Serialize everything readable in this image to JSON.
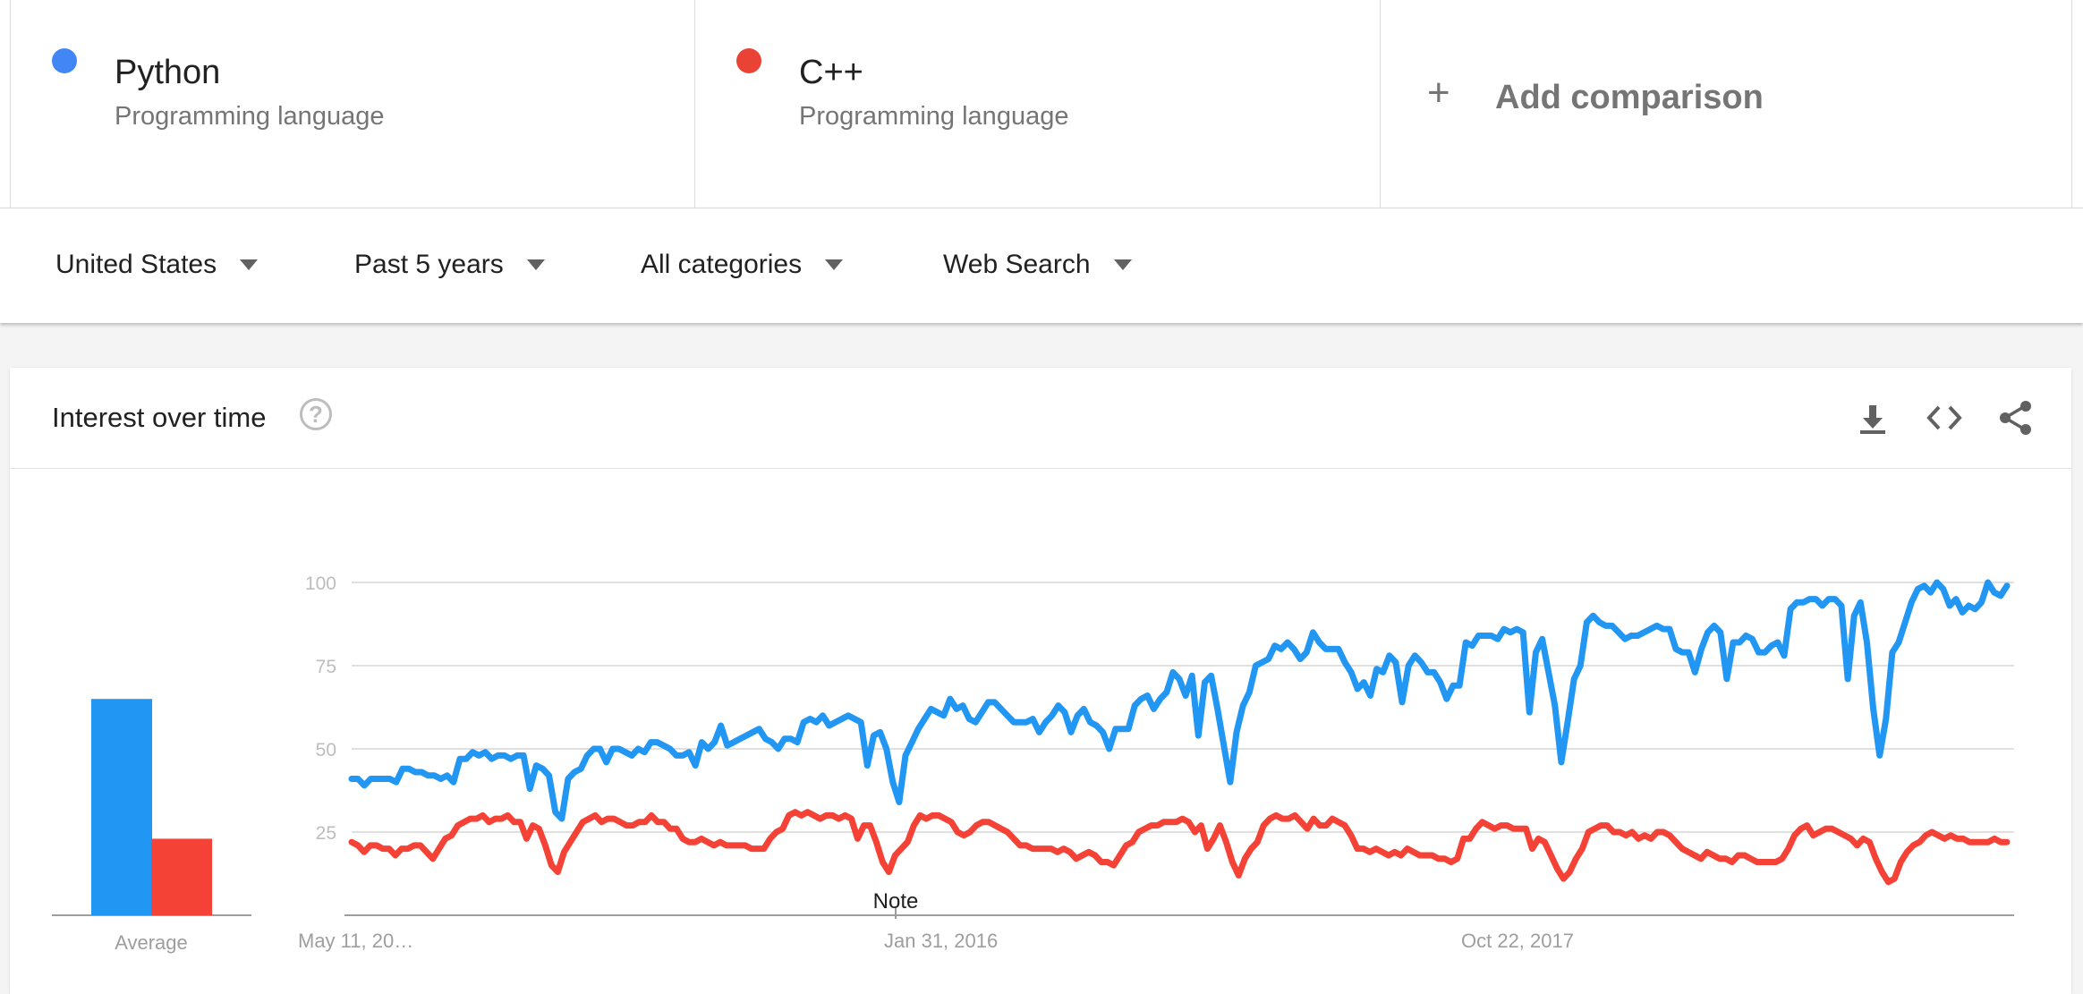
{
  "terms": [
    {
      "name": "Python",
      "category": "Programming language",
      "color": "#4285f4"
    },
    {
      "name": "C++",
      "category": "Programming language",
      "color": "#ea4335"
    }
  ],
  "add_comparison": {
    "icon": "plus-icon",
    "label": "Add comparison"
  },
  "filters": {
    "region": "United States",
    "time": "Past 5 years",
    "category": "All categories",
    "search_type": "Web Search"
  },
  "card": {
    "title": "Interest over time",
    "help_icon": "help-icon",
    "help_glyph": "?",
    "tools": [
      "download-icon",
      "embed-icon",
      "share-icon"
    ],
    "note_label": "Note"
  },
  "chart_data": {
    "type": "line",
    "title": "Interest over time",
    "x_tick_labels": [
      "May 11, 20…",
      "Jan 31, 2016",
      "Oct 22, 2017"
    ],
    "y_ticks": [
      25,
      50,
      75,
      100
    ],
    "ylim": [
      0,
      100
    ],
    "grid": true,
    "series": [
      {
        "name": "Python",
        "color": "#2196f3",
        "average": 65,
        "values": [
          41,
          41,
          39,
          41,
          41,
          41,
          41,
          40,
          44,
          44,
          43,
          43,
          42,
          42,
          41,
          42,
          40,
          47,
          47,
          49,
          48,
          49,
          47,
          48,
          48,
          47,
          48,
          48,
          38,
          45,
          44,
          42,
          31,
          29,
          41,
          43,
          44,
          48,
          50,
          50,
          46,
          50,
          50,
          49,
          48,
          50,
          49,
          52,
          52,
          51,
          50,
          48,
          48,
          49,
          45,
          52,
          50,
          52,
          57,
          51,
          52,
          53,
          54,
          55,
          56,
          53,
          52,
          50,
          53,
          53,
          52,
          58,
          59,
          58,
          60,
          57,
          58,
          59,
          60,
          59,
          58,
          45,
          54,
          55,
          50,
          40,
          34,
          48,
          52,
          56,
          59,
          62,
          61,
          60,
          65,
          62,
          63,
          59,
          58,
          61,
          64,
          64,
          62,
          60,
          58,
          58,
          58,
          59,
          55,
          58,
          60,
          63,
          61,
          55,
          60,
          62,
          58,
          57,
          55,
          50,
          56,
          56,
          56,
          63,
          65,
          66,
          62,
          65,
          67,
          73,
          71,
          66,
          72,
          54,
          70,
          72,
          62,
          51,
          40,
          55,
          63,
          67,
          75,
          76,
          77,
          81,
          80,
          82,
          80,
          77,
          79,
          85,
          82,
          80,
          80,
          80,
          76,
          73,
          68,
          70,
          66,
          74,
          73,
          78,
          76,
          64,
          75,
          78,
          76,
          73,
          73,
          70,
          65,
          69,
          69,
          82,
          81,
          84,
          84,
          84,
          83,
          86,
          85,
          86,
          85,
          61,
          79,
          83,
          73,
          63,
          46,
          58,
          71,
          75,
          88,
          90,
          88,
          87,
          87,
          85,
          83,
          84,
          84,
          85,
          86,
          87,
          86,
          86,
          80,
          79,
          79,
          73,
          80,
          85,
          87,
          85,
          71,
          82,
          82,
          84,
          83,
          79,
          79,
          81,
          82,
          78,
          92,
          94,
          94,
          95,
          95,
          93,
          95,
          95,
          93,
          71,
          90,
          94,
          82,
          62,
          48,
          59,
          79,
          82,
          88,
          94,
          98,
          99,
          97,
          100,
          98,
          93,
          95,
          91,
          93,
          92,
          94,
          100,
          97,
          96,
          99
        ]
      },
      {
        "name": "C++",
        "color": "#f44336",
        "average": 23,
        "values": [
          22,
          21,
          19,
          21,
          21,
          20,
          20,
          18,
          20,
          20,
          21,
          21,
          19,
          17,
          20,
          23,
          24,
          27,
          28,
          29,
          29,
          30,
          28,
          29,
          29,
          30,
          28,
          28,
          23,
          27,
          26,
          21,
          15,
          13,
          19,
          22,
          25,
          28,
          29,
          30,
          28,
          29,
          29,
          28,
          27,
          27,
          28,
          28,
          30,
          28,
          28,
          26,
          26,
          23,
          22,
          22,
          23,
          22,
          21,
          22,
          21,
          21,
          21,
          21,
          20,
          20,
          20,
          23,
          25,
          26,
          30,
          31,
          30,
          31,
          30,
          29,
          30,
          30,
          29,
          30,
          29,
          23,
          27,
          27,
          22,
          16,
          13,
          18,
          20,
          22,
          27,
          30,
          29,
          30,
          30,
          29,
          28,
          25,
          24,
          25,
          27,
          28,
          28,
          27,
          26,
          25,
          23,
          21,
          21,
          20,
          20,
          20,
          20,
          19,
          20,
          19,
          17,
          18,
          19,
          18,
          16,
          16,
          15,
          18,
          21,
          22,
          25,
          26,
          27,
          27,
          28,
          28,
          28,
          29,
          28,
          25,
          27,
          20,
          23,
          27,
          22,
          16,
          12,
          17,
          20,
          22,
          27,
          29,
          30,
          29,
          29,
          30,
          28,
          26,
          29,
          27,
          27,
          29,
          28,
          27,
          24,
          20,
          20,
          19,
          20,
          19,
          18,
          19,
          18,
          20,
          19,
          18,
          18,
          18,
          17,
          17,
          16,
          17,
          23,
          23,
          26,
          28,
          27,
          26,
          27,
          27,
          26,
          26,
          26,
          20,
          23,
          22,
          18,
          14,
          11,
          13,
          17,
          20,
          25,
          26,
          27,
          27,
          25,
          25,
          24,
          25,
          23,
          24,
          23,
          25,
          25,
          24,
          22,
          20,
          19,
          18,
          17,
          19,
          18,
          17,
          17,
          16,
          18,
          18,
          17,
          16,
          16,
          16,
          16,
          17,
          20,
          24,
          26,
          27,
          24,
          25,
          26,
          26,
          25,
          24,
          23,
          21,
          23,
          22,
          17,
          13,
          10,
          11,
          16,
          19,
          21,
          22,
          24,
          25,
          24,
          23,
          24,
          23,
          23,
          22,
          22,
          22,
          22,
          23,
          22,
          22
        ]
      }
    ]
  }
}
